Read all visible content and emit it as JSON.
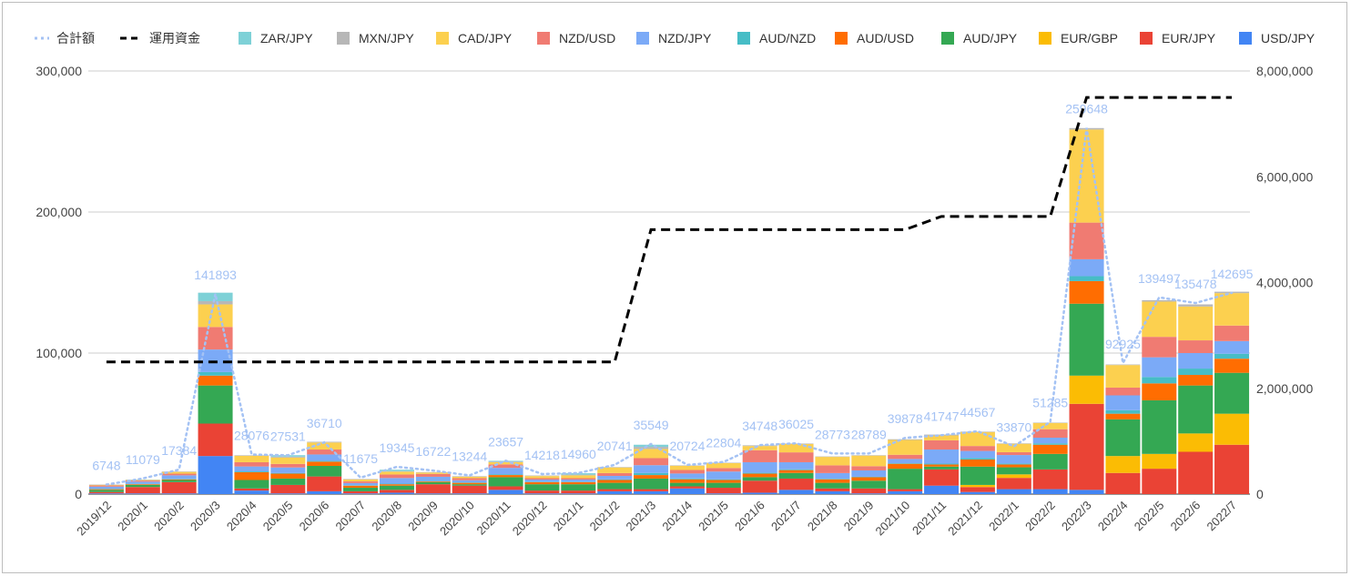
{
  "chart_data": {
    "type": "bar",
    "stacked": true,
    "categories": [
      "2019/12",
      "2020/1",
      "2020/2",
      "2020/3",
      "2020/4",
      "2020/5",
      "2020/6",
      "2020/7",
      "2020/8",
      "2020/9",
      "2020/10",
      "2020/11",
      "2020/12",
      "2021/1",
      "2021/2",
      "2021/3",
      "2021/4",
      "2021/5",
      "2021/6",
      "2021/7",
      "2021/8",
      "2021/9",
      "2021/10",
      "2021/11",
      "2021/12",
      "2022/1",
      "2022/2",
      "2022/3",
      "2022/4",
      "2022/5",
      "2022/6",
      "2022/7"
    ],
    "y_left": {
      "ylim": [
        0,
        300000
      ],
      "ticks": [
        "0",
        "100,000",
        "200,000",
        "300,000"
      ]
    },
    "y_right": {
      "ylim": [
        0,
        8000000
      ],
      "ticks": [
        "0",
        "2,000,000",
        "4,000,000",
        "6,000,000",
        "8,000,000"
      ]
    },
    "grid": true,
    "legend_position": "top",
    "series": [
      {
        "name": "USD/JPY",
        "color": "#4285f4",
        "values": [
          500,
          500,
          500,
          27000,
          2500,
          500,
          2000,
          500,
          1000,
          500,
          500,
          3000,
          500,
          500,
          2000,
          2000,
          4000,
          500,
          1000,
          3000,
          2000,
          500,
          2000,
          6000,
          1500,
          3500,
          3500,
          3000,
          0,
          0,
          0,
          0
        ]
      },
      {
        "name": "EUR/JPY",
        "color": "#ea4335",
        "values": [
          1000,
          4500,
          8000,
          23000,
          1500,
          6000,
          10500,
          1500,
          2000,
          6500,
          5500,
          2500,
          2000,
          2000,
          1500,
          1500,
          1500,
          4000,
          8500,
          8000,
          2000,
          3500,
          1500,
          11500,
          3500,
          8000,
          14000,
          61000,
          15000,
          18000,
          30000,
          35000
        ]
      },
      {
        "name": "EUR/GBP",
        "color": "#fbbc04",
        "values": [
          0,
          0,
          0,
          0,
          0,
          0,
          0,
          0,
          0,
          0,
          0,
          0,
          0,
          0,
          0,
          0,
          0,
          0,
          0,
          0,
          0,
          0,
          0,
          0,
          1500,
          2500,
          0,
          20000,
          12000,
          10500,
          13000,
          22000
        ]
      },
      {
        "name": "AUD/JPY",
        "color": "#34a853",
        "values": [
          1500,
          1500,
          1500,
          27000,
          6000,
          4500,
          7500,
          2500,
          3000,
          1500,
          1000,
          6500,
          4500,
          4500,
          4500,
          7500,
          2500,
          3500,
          2500,
          4000,
          4000,
          5500,
          14500,
          2000,
          13000,
          5000,
          11000,
          51000,
          26000,
          38000,
          34000,
          29000
        ]
      },
      {
        "name": "AUD/USD",
        "color": "#ff6d01",
        "values": [
          500,
          500,
          500,
          7000,
          5500,
          3500,
          3000,
          1500,
          1000,
          500,
          1000,
          1500,
          1500,
          1500,
          2000,
          2500,
          2500,
          2000,
          2500,
          2000,
          2500,
          2500,
          3500,
          1500,
          5000,
          2000,
          6500,
          16000,
          4000,
          12000,
          7500,
          10000
        ]
      },
      {
        "name": "AUD/NZD",
        "color": "#46bdc6",
        "values": [
          300,
          300,
          300,
          2500,
          600,
          400,
          600,
          300,
          400,
          300,
          300,
          600,
          300,
          300,
          400,
          1500,
          600,
          500,
          600,
          600,
          400,
          300,
          400,
          600,
          1100,
          700,
          1000,
          3500,
          2500,
          4500,
          4500,
          3500
        ]
      },
      {
        "name": "NZD/JPY",
        "color": "#7baaf7",
        "values": [
          1500,
          1500,
          2500,
          16000,
          3500,
          4000,
          4500,
          1500,
          4000,
          3000,
          1500,
          4500,
          1500,
          1500,
          2500,
          5500,
          3500,
          5500,
          7500,
          5000,
          4000,
          4500,
          3000,
          10000,
          5000,
          6000,
          4000,
          12000,
          10500,
          14000,
          11000,
          9000
        ]
      },
      {
        "name": "NZD/USD",
        "color": "#f07b72",
        "values": [
          800,
          800,
          1200,
          16000,
          3000,
          2500,
          3500,
          1200,
          2500,
          2000,
          1500,
          2500,
          1000,
          1000,
          2000,
          5000,
          2500,
          2500,
          8500,
          7000,
          5500,
          3000,
          3000,
          6500,
          3500,
          2000,
          6000,
          26000,
          5500,
          14500,
          9000,
          11000
        ]
      },
      {
        "name": "CAD/JPY",
        "color": "#fcd04f",
        "values": [
          500,
          500,
          1300,
          16000,
          4500,
          4500,
          5000,
          1500,
          2000,
          1000,
          1000,
          1500,
          1500,
          2000,
          4000,
          6500,
          3000,
          3500,
          3000,
          6000,
          6000,
          7500,
          10500,
          3500,
          10000,
          6000,
          4500,
          66000,
          16000,
          25000,
          24000,
          23000
        ]
      },
      {
        "name": "MXN/JPY",
        "color": "#b7b7b7",
        "values": [
          100,
          100,
          200,
          2300,
          400,
          700,
          500,
          200,
          400,
          300,
          400,
          500,
          400,
          500,
          300,
          1500,
          300,
          300,
          500,
          300,
          300,
          300,
          500,
          600,
          200,
          300,
          200,
          1000,
          400,
          1000,
          1500,
          1000
        ]
      },
      {
        "name": "ZAR/JPY",
        "color": "#7ed1d7",
        "values": [
          0,
          0,
          0,
          6000,
          0,
          1000,
          0,
          0,
          1000,
          0,
          0,
          500,
          0,
          1000,
          0,
          1500,
          0,
          0,
          0,
          0,
          0,
          0,
          0,
          0,
          0,
          0,
          0,
          0,
          0,
          0,
          0,
          0
        ]
      }
    ],
    "totals": {
      "name": "合計額",
      "color": "#a4c2f4",
      "axis": "left",
      "values": [
        6748,
        11079,
        17384,
        141893,
        28076,
        27531,
        36710,
        11675,
        19345,
        16722,
        13244,
        23657,
        14218,
        14960,
        20741,
        35549,
        20724,
        22804,
        34748,
        36025,
        28773,
        28789,
        39878,
        41747,
        44567,
        33870,
        51285,
        259648,
        92925,
        139497,
        135478,
        142695
      ]
    },
    "capital": {
      "name": "運用資金",
      "color": "#000000",
      "axis": "right",
      "values": [
        2500000,
        2500000,
        2500000,
        2500000,
        2500000,
        2500000,
        2500000,
        2500000,
        2500000,
        2500000,
        2500000,
        2500000,
        2500000,
        2500000,
        2500000,
        5000000,
        5000000,
        5000000,
        5000000,
        5000000,
        5000000,
        5000000,
        5000000,
        5250000,
        5250000,
        5250000,
        5250000,
        7500000,
        7500000,
        7500000,
        7500000,
        7500000
      ]
    },
    "legend_order": [
      "合計額",
      "運用資金",
      "ZAR/JPY",
      "MXN/JPY",
      "CAD/JPY",
      "NZD/USD",
      "NZD/JPY",
      "AUD/NZD",
      "AUD/USD",
      "AUD/JPY",
      "EUR/GBP",
      "EUR/JPY",
      "USD/JPY"
    ]
  }
}
